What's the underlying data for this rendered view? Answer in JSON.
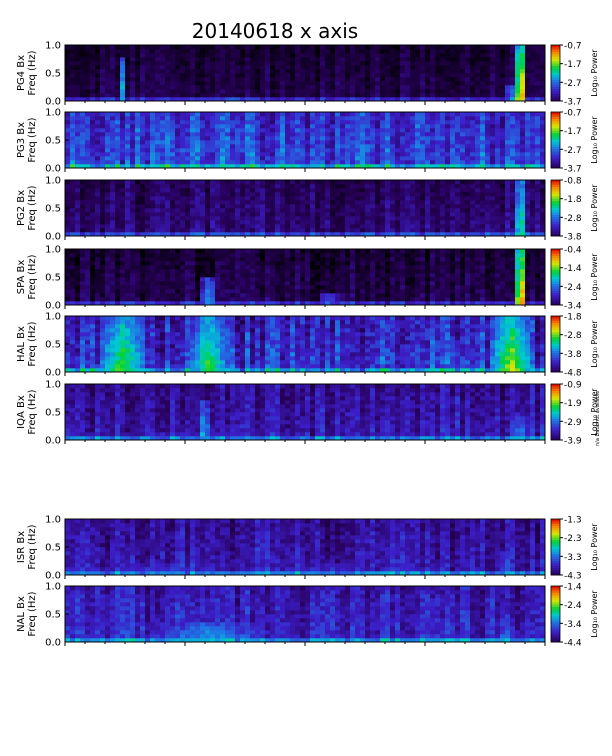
{
  "page": {
    "title": "20140618  x axis"
  },
  "chart_data": {
    "type": "heatmap",
    "title": "20140618  x axis",
    "y_ticks": [
      "0.0",
      "0.5",
      "1.0"
    ],
    "ylim": [
      0,
      1.0
    ],
    "ylabel_line2": "Freq (Hz)",
    "colorbar_label": "Log₁₀ Power",
    "side_note": "n/a Data not available",
    "panels": [
      {
        "station": "PG4 Bx",
        "cbar_ticks": [
          "-0.7",
          "-1.7",
          "-2.7",
          "-3.7"
        ],
        "background_level": 0.08,
        "noise": 0.1,
        "events": [
          {
            "t": 0.95,
            "w": 0.012,
            "level": 0.95,
            "fmax": 1.0
          },
          {
            "t": 0.94,
            "w": 0.02,
            "level": 0.6,
            "fmax": 0.3
          },
          {
            "t": 0.12,
            "w": 0.006,
            "level": 0.55,
            "fmax": 0.8
          },
          {
            "t": 0.35,
            "w": 0.1,
            "level": 0.45,
            "fmax": 0.08
          }
        ]
      },
      {
        "station": "PG3 Bx",
        "cbar_ticks": [
          "-0.7",
          "-1.7",
          "-2.7",
          "-3.7"
        ],
        "background_level": 0.32,
        "noise": 0.18,
        "events": [
          {
            "t": 0.05,
            "w": 0.08,
            "level": 0.4,
            "fmax": 0.15
          },
          {
            "t": 0.6,
            "w": 0.2,
            "level": 0.4,
            "fmax": 0.1
          }
        ]
      },
      {
        "station": "PG2 Bx",
        "cbar_ticks": [
          "-0.8",
          "-1.8",
          "-2.8",
          "-3.8"
        ],
        "background_level": 0.14,
        "noise": 0.12,
        "events": [
          {
            "t": 0.95,
            "w": 0.012,
            "level": 0.7,
            "fmax": 1.0
          },
          {
            "t": 0.4,
            "w": 0.3,
            "level": 0.3,
            "fmax": 0.06
          }
        ]
      },
      {
        "station": "SPA Bx",
        "cbar_ticks": [
          "-0.4",
          "-1.4",
          "-2.4",
          "-3.4"
        ],
        "background_level": 0.08,
        "noise": 0.12,
        "events": [
          {
            "t": 0.95,
            "w": 0.012,
            "level": 0.95,
            "fmax": 1.0
          },
          {
            "t": 0.3,
            "w": 0.015,
            "level": 0.55,
            "fmax": 0.5
          },
          {
            "t": 0.55,
            "w": 0.02,
            "level": 0.45,
            "fmax": 0.2
          }
        ]
      },
      {
        "station": "HAL Bx",
        "cbar_ticks": [
          "-1.8",
          "-2.8",
          "-3.8",
          "-4.8"
        ],
        "background_level": 0.28,
        "noise": 0.2,
        "events": [
          {
            "t": 0.12,
            "w": 0.05,
            "level": 0.72,
            "fmax": 1.0
          },
          {
            "t": 0.3,
            "w": 0.04,
            "level": 0.7,
            "fmax": 1.0
          },
          {
            "t": 0.93,
            "w": 0.04,
            "level": 0.8,
            "fmax": 1.0
          },
          {
            "t": 0.82,
            "w": 0.06,
            "level": 0.38,
            "fmax": 0.55
          },
          {
            "t": 0.5,
            "w": 0.2,
            "level": 0.32,
            "fmax": 0.5
          }
        ]
      },
      {
        "station": "IQA Bx",
        "cbar_ticks": [
          "-0.9",
          "-1.9",
          "-2.9",
          "-3.9"
        ],
        "background_level": 0.22,
        "noise": 0.14,
        "events": [
          {
            "t": 0.29,
            "w": 0.01,
            "level": 0.6,
            "fmax": 0.7
          },
          {
            "t": 0.95,
            "w": 0.015,
            "level": 0.55,
            "fmax": 0.4
          },
          {
            "t": 0.25,
            "w": 0.25,
            "level": 0.38,
            "fmax": 0.15
          }
        ]
      },
      {
        "station": "ISR Bx",
        "cbar_ticks": [
          "-1.3",
          "-2.3",
          "-3.3",
          "-4.3"
        ],
        "background_level": 0.22,
        "noise": 0.14,
        "events": [
          {
            "t": 0.2,
            "w": 0.15,
            "level": 0.4,
            "fmax": 0.2
          },
          {
            "t": 0.55,
            "w": 0.15,
            "level": 0.38,
            "fmax": 0.2
          },
          {
            "t": 0.92,
            "w": 0.02,
            "level": 0.45,
            "fmax": 0.4
          }
        ]
      },
      {
        "station": "NAL Bx",
        "cbar_ticks": [
          "-1.4",
          "-2.4",
          "-3.4",
          "-4.4"
        ],
        "background_level": 0.25,
        "noise": 0.14,
        "events": [
          {
            "t": 0.3,
            "w": 0.12,
            "level": 0.55,
            "fmax": 0.35
          },
          {
            "t": 0.7,
            "w": 0.003,
            "level": 0.6,
            "fmax": 0.9
          },
          {
            "t": 0.92,
            "w": 0.02,
            "level": 0.5,
            "fmax": 0.4
          }
        ]
      }
    ]
  }
}
